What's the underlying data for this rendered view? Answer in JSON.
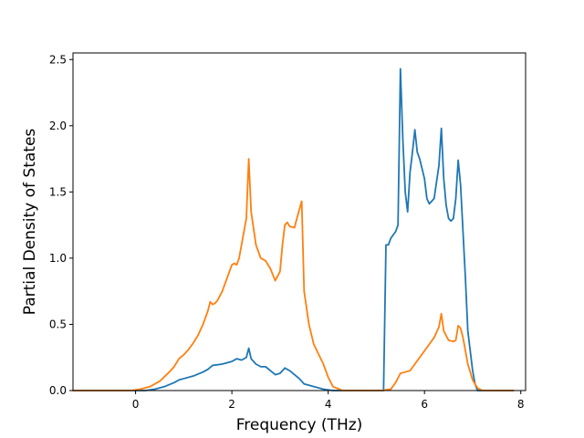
{
  "chart_data": {
    "type": "line",
    "title": "",
    "xlabel": "Frequency (THz)",
    "ylabel": "Partial Density of States",
    "xlim": [
      -1.3,
      8.1
    ],
    "ylim": [
      0.0,
      2.55
    ],
    "xticks": [
      0,
      2,
      4,
      6,
      8
    ],
    "xtick_labels": [
      "0",
      "2",
      "4",
      "6",
      "8"
    ],
    "yticks": [
      0.0,
      0.5,
      1.0,
      1.5,
      2.0,
      2.5
    ],
    "ytick_labels": [
      "0.0",
      "0.5",
      "1.0",
      "1.5",
      "2.0",
      "2.5"
    ],
    "grid": false,
    "legend": false,
    "series": [
      {
        "color": "#1f77b4",
        "x": [
          -1.3,
          0.2,
          0.4,
          0.6,
          0.8,
          0.9,
          1.0,
          1.2,
          1.4,
          1.5,
          1.6,
          1.8,
          2.0,
          2.1,
          2.2,
          2.3,
          2.35,
          2.4,
          2.5,
          2.6,
          2.7,
          2.8,
          2.9,
          3.0,
          3.1,
          3.2,
          3.3,
          3.4,
          3.5,
          3.7,
          3.9,
          4.1,
          4.3,
          5.15,
          5.2,
          5.25,
          5.3,
          5.4,
          5.45,
          5.5,
          5.55,
          5.6,
          5.65,
          5.7,
          5.75,
          5.8,
          5.85,
          5.9,
          6.0,
          6.05,
          6.1,
          6.2,
          6.3,
          6.35,
          6.4,
          6.45,
          6.5,
          6.55,
          6.6,
          6.65,
          6.7,
          6.75,
          6.8,
          6.85,
          6.9,
          7.0,
          7.05,
          7.1,
          7.85
        ],
        "y": [
          0.0,
          0.0,
          0.01,
          0.03,
          0.06,
          0.08,
          0.09,
          0.11,
          0.14,
          0.16,
          0.19,
          0.2,
          0.22,
          0.24,
          0.23,
          0.25,
          0.32,
          0.24,
          0.2,
          0.18,
          0.18,
          0.15,
          0.12,
          0.13,
          0.17,
          0.15,
          0.12,
          0.09,
          0.05,
          0.03,
          0.01,
          0.0,
          0.0,
          0.0,
          1.1,
          1.1,
          1.15,
          1.2,
          1.25,
          2.43,
          1.9,
          1.5,
          1.35,
          1.65,
          1.8,
          1.97,
          1.8,
          1.75,
          1.6,
          1.45,
          1.41,
          1.45,
          1.7,
          1.98,
          1.6,
          1.4,
          1.3,
          1.28,
          1.3,
          1.45,
          1.74,
          1.55,
          1.2,
          0.85,
          0.45,
          0.15,
          0.05,
          0.0,
          0.0
        ]
      },
      {
        "color": "#ff7f0e",
        "x": [
          -1.3,
          -0.1,
          0.1,
          0.3,
          0.5,
          0.7,
          0.8,
          0.9,
          1.0,
          1.1,
          1.2,
          1.3,
          1.4,
          1.5,
          1.55,
          1.6,
          1.65,
          1.7,
          1.8,
          1.9,
          2.0,
          2.05,
          2.1,
          2.15,
          2.2,
          2.3,
          2.35,
          2.4,
          2.5,
          2.6,
          2.7,
          2.8,
          2.9,
          3.0,
          3.05,
          3.1,
          3.15,
          3.2,
          3.3,
          3.35,
          3.45,
          3.5,
          3.6,
          3.7,
          3.9,
          4.0,
          4.1,
          4.3,
          5.1,
          5.3,
          5.4,
          5.5,
          5.6,
          5.7,
          5.8,
          5.9,
          6.0,
          6.1,
          6.2,
          6.3,
          6.35,
          6.4,
          6.5,
          6.6,
          6.65,
          6.7,
          6.75,
          6.8,
          6.9,
          7.0,
          7.1,
          7.2,
          7.85
        ],
        "y": [
          0.0,
          0.0,
          0.01,
          0.03,
          0.07,
          0.14,
          0.18,
          0.24,
          0.27,
          0.31,
          0.36,
          0.42,
          0.5,
          0.6,
          0.67,
          0.65,
          0.66,
          0.68,
          0.75,
          0.85,
          0.95,
          0.96,
          0.95,
          1.0,
          1.1,
          1.3,
          1.75,
          1.35,
          1.1,
          1.0,
          0.98,
          0.92,
          0.83,
          0.9,
          1.1,
          1.25,
          1.27,
          1.24,
          1.23,
          1.3,
          1.43,
          0.75,
          0.5,
          0.35,
          0.2,
          0.1,
          0.03,
          0.0,
          0.0,
          0.01,
          0.06,
          0.13,
          0.14,
          0.15,
          0.2,
          0.25,
          0.3,
          0.35,
          0.4,
          0.48,
          0.58,
          0.45,
          0.38,
          0.37,
          0.38,
          0.49,
          0.47,
          0.4,
          0.2,
          0.08,
          0.02,
          0.0,
          0.0
        ]
      }
    ]
  }
}
